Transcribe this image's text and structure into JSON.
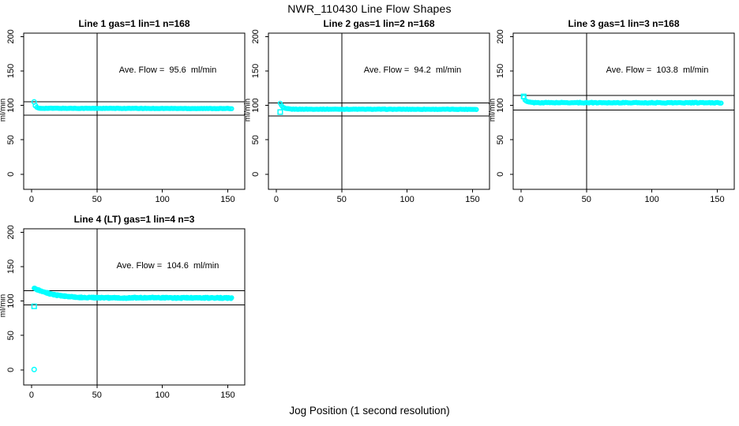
{
  "main_title": "NWR_110430  Line Flow Shapes",
  "x_axis_label": "Jog Position (1 second resolution)",
  "colors": {
    "accent": "#00ffff",
    "axis": "#000000",
    "background": "#ffffff"
  },
  "chart_data": [
    {
      "type": "scatter",
      "title": "Line 1 gas=1 lin=1 n=168",
      "annotation": "Ave. Flow =  95.6  ml/min",
      "ave_flow_ml_min": 95.6,
      "n": 168,
      "ylabel": "ml/min",
      "x_ticks": [
        0,
        50,
        100,
        150
      ],
      "y_ticks": [
        0,
        50,
        100,
        150,
        200
      ],
      "xlim": [
        -6,
        163
      ],
      "ylim": [
        -22,
        205
      ],
      "vline_x": 50,
      "ref_lines": [
        105.2,
        86.0
      ],
      "series": {
        "name": "line-1-flow",
        "marker": "open-circle",
        "x_step": 1,
        "noise": 0.3,
        "backbone": [
          [
            4,
            97.0
          ],
          [
            6,
            95.8
          ],
          [
            153,
            95.4
          ]
        ]
      },
      "outliers": [
        {
          "x": 2,
          "y": 105.0,
          "marker": "circle"
        },
        {
          "x": 3,
          "y": 99.5,
          "marker": "circle"
        }
      ]
    },
    {
      "type": "scatter",
      "title": "Line 2 gas=1 lin=2 n=168",
      "annotation": "Ave. Flow =  94.2  ml/min",
      "ave_flow_ml_min": 94.2,
      "n": 168,
      "ylabel": "ml/min",
      "x_ticks": [
        0,
        50,
        100,
        150
      ],
      "y_ticks": [
        0,
        50,
        100,
        150,
        200
      ],
      "xlim": [
        -6,
        163
      ],
      "ylim": [
        -22,
        205
      ],
      "vline_x": 50,
      "ref_lines": [
        103.6,
        84.8
      ],
      "series": {
        "name": "line-2-flow",
        "marker": "open-circle",
        "x_step": 1,
        "noise": 0.3,
        "backbone": [
          [
            3,
            103.0
          ],
          [
            4,
            99.8
          ],
          [
            5,
            97.3
          ],
          [
            7,
            95.4
          ],
          [
            12,
            94.5
          ],
          [
            153,
            94.3
          ]
        ]
      },
      "outliers": [
        {
          "x": 3,
          "y": 90.3,
          "marker": "square"
        }
      ]
    },
    {
      "type": "scatter",
      "title": "Line 3 gas=1 lin=3 n=168",
      "annotation": "Ave. Flow =  103.8  ml/min",
      "ave_flow_ml_min": 103.8,
      "n": 168,
      "ylabel": "ml/min",
      "x_ticks": [
        0,
        50,
        100,
        150
      ],
      "y_ticks": [
        0,
        50,
        100,
        150,
        200
      ],
      "xlim": [
        -6,
        163
      ],
      "ylim": [
        -22,
        205
      ],
      "vline_x": 50,
      "ref_lines": [
        114.2,
        93.4
      ],
      "series": {
        "name": "line-3-flow",
        "marker": "open-circle",
        "x_step": 1,
        "noise": 0.55,
        "backbone": [
          [
            2,
            111.5
          ],
          [
            3,
            107.5
          ],
          [
            5,
            105.0
          ],
          [
            9,
            104.0
          ],
          [
            153,
            103.8
          ]
        ]
      },
      "outliers": [
        {
          "x": 2,
          "y": 113.0,
          "marker": "square"
        }
      ]
    },
    {
      "type": "scatter",
      "title": "Line 4 (LT) gas=1 lin=4 n=3",
      "annotation": "Ave. Flow =  104.6  ml/min",
      "ave_flow_ml_min": 104.6,
      "n": 3,
      "ylabel": "ml/min",
      "x_ticks": [
        0,
        50,
        100,
        150
      ],
      "y_ticks": [
        0,
        50,
        100,
        150,
        200
      ],
      "xlim": [
        -6,
        163
      ],
      "ylim": [
        -22,
        205
      ],
      "vline_x": 50,
      "ref_lines": [
        115.1,
        94.1
      ],
      "series": {
        "name": "line-4-flow",
        "marker": "open-circle",
        "x_step": 0.5,
        "noise": 0.85,
        "backbone": [
          [
            2,
            118.3
          ],
          [
            4,
            117.0
          ],
          [
            6,
            115.5
          ],
          [
            8,
            114.0
          ],
          [
            10,
            112.8
          ],
          [
            13,
            111.2
          ],
          [
            16,
            109.8
          ],
          [
            20,
            108.3
          ],
          [
            24,
            107.2
          ],
          [
            28,
            106.4
          ],
          [
            33,
            105.7
          ],
          [
            38,
            105.2
          ],
          [
            45,
            104.9
          ],
          [
            55,
            104.7
          ],
          [
            70,
            104.6
          ],
          [
            90,
            104.8
          ],
          [
            110,
            104.5
          ],
          [
            130,
            104.7
          ],
          [
            153,
            104.4
          ]
        ]
      },
      "outliers": [
        {
          "x": 2,
          "y": 92.3,
          "marker": "square"
        },
        {
          "x": 2,
          "y": 0.5,
          "marker": "circle"
        }
      ]
    }
  ]
}
